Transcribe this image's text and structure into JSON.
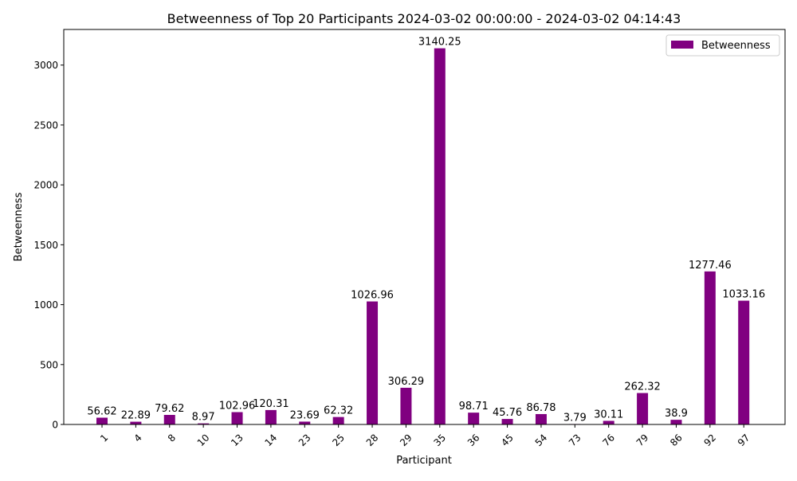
{
  "chart_data": {
    "type": "bar",
    "title": "Betweenness of Top 20 Participants 2024-03-02 00:00:00 - 2024-03-02 04:14:43",
    "xlabel": "Participant",
    "ylabel": "Betweenness",
    "categories": [
      "1",
      "4",
      "8",
      "10",
      "13",
      "14",
      "23",
      "25",
      "28",
      "29",
      "35",
      "36",
      "45",
      "54",
      "73",
      "76",
      "79",
      "86",
      "92",
      "97"
    ],
    "series": [
      {
        "name": "Betweenness",
        "color": "#800080",
        "values": [
          56.62,
          22.89,
          79.62,
          8.97,
          102.96,
          120.31,
          23.69,
          62.32,
          1026.96,
          306.29,
          3140.25,
          98.71,
          45.76,
          86.78,
          3.79,
          30.11,
          262.32,
          38.9,
          1277.46,
          1033.16
        ]
      }
    ],
    "data_labels": [
      "56.62",
      "22.89",
      "79.62",
      "8.97",
      "102.96",
      "120.31",
      "23.69",
      "62.32",
      "1026.96",
      "306.29",
      "3140.25",
      "98.71",
      "45.76",
      "86.78",
      "3.79",
      "30.11",
      "262.32",
      "38.9",
      "1277.46",
      "1033.16"
    ],
    "yticks": [
      0,
      500,
      1000,
      1500,
      2000,
      2500,
      3000
    ],
    "ylim": [
      0,
      3297.26
    ],
    "grid": false,
    "legend_position": "top-right"
  }
}
